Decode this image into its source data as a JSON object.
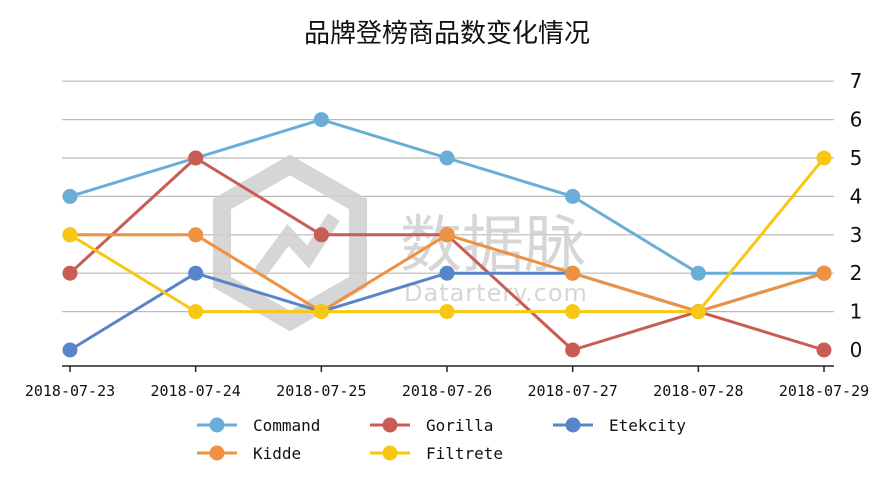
{
  "chart_data": {
    "type": "line",
    "title": "品牌登榜商品数变化情况",
    "categories": [
      "2018-07-23",
      "2018-07-24",
      "2018-07-25",
      "2018-07-26",
      "2018-07-27",
      "2018-07-28",
      "2018-07-29"
    ],
    "series": [
      {
        "name": "Command",
        "color": "#6aaed8",
        "values": [
          4,
          5,
          6,
          5,
          4,
          2,
          2
        ]
      },
      {
        "name": "Gorilla",
        "color": "#c95c54",
        "values": [
          2,
          5,
          3,
          3,
          0,
          1,
          0
        ]
      },
      {
        "name": "Etekcity",
        "color": "#5885c9",
        "values": [
          0,
          2,
          1,
          2,
          2,
          1,
          2
        ]
      },
      {
        "name": "Kidde",
        "color": "#ee9140",
        "values": [
          3,
          3,
          1,
          3,
          2,
          1,
          2
        ]
      },
      {
        "name": "Filtrete",
        "color": "#f7c713",
        "values": [
          3,
          1,
          1,
          1,
          1,
          1,
          5
        ]
      }
    ],
    "ylim": [
      0,
      7
    ],
    "yticks": [
      0,
      1,
      2,
      3,
      4,
      5,
      6,
      7
    ],
    "y_axis_side": "right",
    "grid": true,
    "legend_position": "bottom"
  },
  "watermark": {
    "text": "数据脉",
    "subtext": "Datartery.com"
  }
}
